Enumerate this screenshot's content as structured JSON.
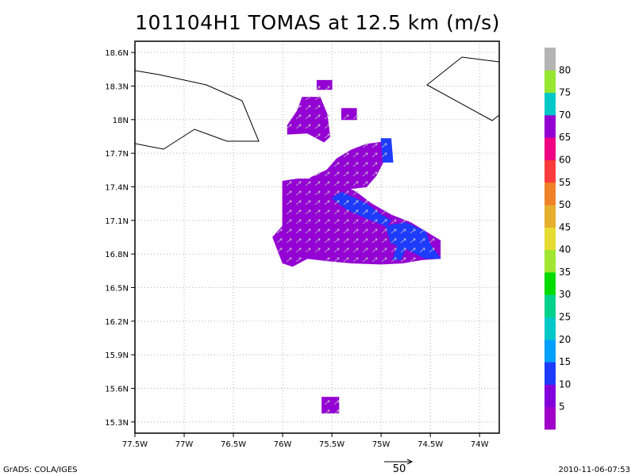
{
  "chart_data": {
    "type": "heatmap",
    "title": "101104H1 TOMAS at 12.5 km (m/s)",
    "x_ticks": [
      "77.5W",
      "77W",
      "76.5W",
      "76W",
      "75.5W",
      "75W",
      "74.5W",
      "74W"
    ],
    "x_tick_values": [
      -77.5,
      -77.0,
      -76.5,
      -76.0,
      -75.5,
      -75.0,
      -74.5,
      -74.0
    ],
    "y_ticks": [
      "18.6N",
      "18.3N",
      "18N",
      "17.7N",
      "17.4N",
      "17.1N",
      "16.8N",
      "16.5N",
      "16.2N",
      "15.9N",
      "15.6N",
      "15.3N"
    ],
    "y_tick_values": [
      18.6,
      18.3,
      18.0,
      17.7,
      17.4,
      17.1,
      16.8,
      16.5,
      16.2,
      15.9,
      15.6,
      15.3
    ],
    "xlim": [
      -77.5,
      -73.8
    ],
    "ylim": [
      15.2,
      18.7
    ],
    "grid": true,
    "colorbar": {
      "labels": [
        "5",
        "10",
        "15",
        "20",
        "25",
        "30",
        "35",
        "40",
        "45",
        "50",
        "55",
        "60",
        "65",
        "70",
        "75",
        "80"
      ],
      "colors": [
        "#a000c8",
        "#8200dc",
        "#1e3cff",
        "#00a0ff",
        "#00c8c8",
        "#00d28c",
        "#00dc00",
        "#a0e632",
        "#e6dc32",
        "#e6af2d",
        "#f08228",
        "#fa3c3c",
        "#f00082",
        "#9400d3",
        "#00c8c8",
        "#96e632",
        "#b4b4b4"
      ]
    },
    "wind_regions": [
      {
        "name": "southern-main",
        "fill": "#9400d3",
        "points": [
          [
            -76.1,
            16.95
          ],
          [
            -76.0,
            16.72
          ],
          [
            -75.9,
            16.69
          ],
          [
            -75.75,
            16.76
          ],
          [
            -75.55,
            16.74
          ],
          [
            -75.3,
            16.72
          ],
          [
            -75.0,
            16.71
          ],
          [
            -74.78,
            16.72
          ],
          [
            -74.58,
            16.75
          ],
          [
            -74.4,
            16.76
          ],
          [
            -74.4,
            16.92
          ],
          [
            -74.55,
            17.0
          ],
          [
            -74.7,
            17.08
          ],
          [
            -74.9,
            17.15
          ],
          [
            -75.1,
            17.25
          ],
          [
            -75.25,
            17.35
          ],
          [
            -75.4,
            17.42
          ],
          [
            -75.6,
            17.47
          ],
          [
            -75.85,
            17.47
          ],
          [
            -76.0,
            17.45
          ],
          [
            -76.0,
            17.05
          ]
        ]
      },
      {
        "name": "upper-main",
        "fill": "#9400d3",
        "points": [
          [
            -75.72,
            17.48
          ],
          [
            -75.55,
            17.55
          ],
          [
            -75.45,
            17.65
          ],
          [
            -75.3,
            17.73
          ],
          [
            -75.15,
            17.78
          ],
          [
            -74.98,
            17.8
          ],
          [
            -74.98,
            17.62
          ],
          [
            -75.05,
            17.5
          ],
          [
            -75.15,
            17.4
          ],
          [
            -75.35,
            17.38
          ],
          [
            -75.55,
            17.4
          ]
        ]
      },
      {
        "name": "northern-cluster",
        "fill": "#9400d3",
        "points": [
          [
            -75.95,
            17.95
          ],
          [
            -75.85,
            18.08
          ],
          [
            -75.8,
            18.2
          ],
          [
            -75.62,
            18.2
          ],
          [
            -75.55,
            18.05
          ],
          [
            -75.52,
            17.85
          ],
          [
            -75.58,
            17.8
          ],
          [
            -75.75,
            17.88
          ],
          [
            -75.95,
            17.87
          ]
        ]
      },
      {
        "name": "north-tip",
        "fill": "#9400d3",
        "points": [
          [
            -75.65,
            18.35
          ],
          [
            -75.5,
            18.35
          ],
          [
            -75.5,
            18.27
          ],
          [
            -75.65,
            18.27
          ]
        ]
      },
      {
        "name": "small-patch",
        "fill": "#9400d3",
        "points": [
          [
            -75.4,
            18.1
          ],
          [
            -75.25,
            18.1
          ],
          [
            -75.25,
            18.0
          ],
          [
            -75.4,
            18.0
          ]
        ]
      },
      {
        "name": "south-patch",
        "fill": "#9400d3",
        "points": [
          [
            -75.6,
            15.52
          ],
          [
            -75.43,
            15.52
          ],
          [
            -75.43,
            15.38
          ],
          [
            -75.6,
            15.38
          ]
        ]
      },
      {
        "name": "blue-band-north",
        "fill": "#1e3cff",
        "points": [
          [
            -75.0,
            17.83
          ],
          [
            -74.9,
            17.83
          ],
          [
            -74.88,
            17.62
          ],
          [
            -74.98,
            17.62
          ]
        ]
      },
      {
        "name": "blue-band-mid",
        "fill": "#1e3cff",
        "points": [
          [
            -75.4,
            17.35
          ],
          [
            -75.15,
            17.25
          ],
          [
            -75.0,
            17.15
          ],
          [
            -74.9,
            17.1
          ],
          [
            -74.95,
            17.05
          ],
          [
            -75.15,
            17.12
          ],
          [
            -75.35,
            17.2
          ],
          [
            -75.5,
            17.3
          ]
        ]
      },
      {
        "name": "blue-band-east",
        "fill": "#1e3cff",
        "points": [
          [
            -74.95,
            17.05
          ],
          [
            -74.75,
            17.08
          ],
          [
            -74.55,
            17.0
          ],
          [
            -74.5,
            16.88
          ],
          [
            -74.4,
            16.76
          ],
          [
            -74.55,
            16.76
          ],
          [
            -74.75,
            16.85
          ],
          [
            -74.9,
            16.9
          ]
        ]
      },
      {
        "name": "blue-streak",
        "fill": "#1e3cff",
        "points": [
          [
            -74.78,
            17.02
          ],
          [
            -74.7,
            16.95
          ],
          [
            -74.8,
            16.75
          ],
          [
            -74.88,
            16.75
          ]
        ]
      }
    ],
    "vector_reference": {
      "magnitude": "50"
    }
  },
  "footer": {
    "left": "GrADS: COLA/IGES",
    "right": "2010-11-06-07:53",
    "vector_ref_label": "50"
  }
}
